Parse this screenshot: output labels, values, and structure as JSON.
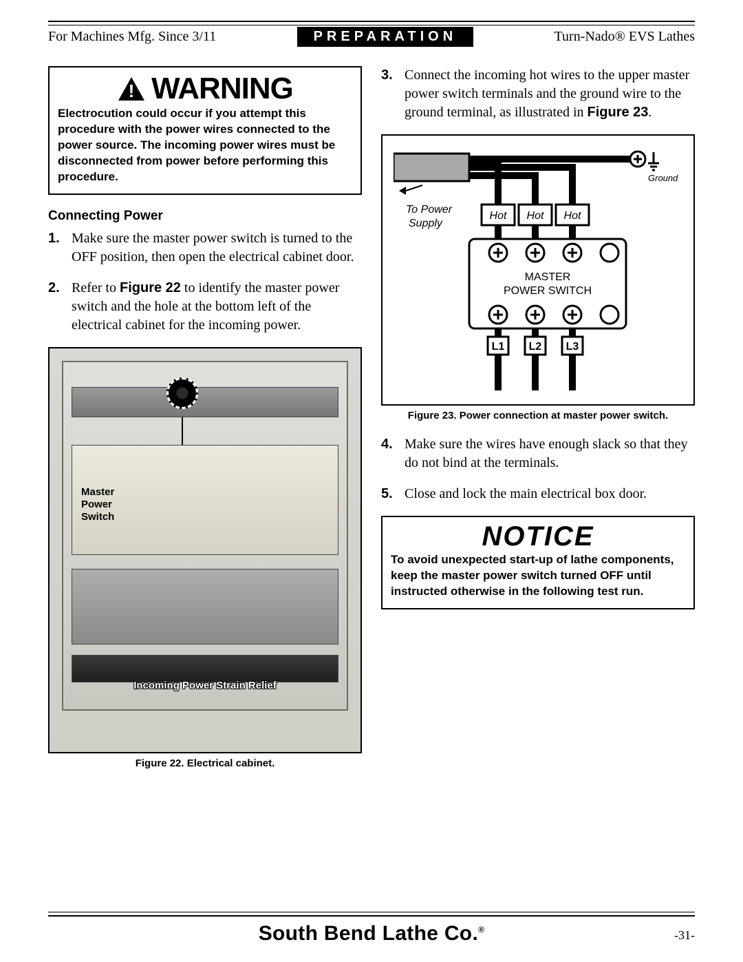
{
  "header": {
    "left": "For Machines Mfg. Since 3/11",
    "center": "PREPARATION",
    "right": "Turn-Nado® EVS Lathes"
  },
  "warning": {
    "title": "WARNING",
    "body": "Electrocution could occur if you attempt this procedure with the power wires connected to the power source. The incoming power wires must be disconnected from power before performing this procedure."
  },
  "subhead": "Connecting Power",
  "steps": [
    {
      "num": "1.",
      "html": "Make sure the master power switch is turned to the OFF position, then open the electrical cabinet door."
    },
    {
      "num": "2.",
      "html": "Refer to <strong>Figure 22</strong> to identify the master power switch and the hole at the bottom left of the electrical cabinet for the incoming power."
    }
  ],
  "fig22": {
    "caption": "Figure 22. Electrical cabinet.",
    "callout_mps_l1": "Master",
    "callout_mps_l2": "Power",
    "callout_mps_l3": "Switch",
    "bottom_label": "Incoming Power Strain Relief"
  },
  "rightSteps": [
    {
      "num": "3.",
      "html": "Connect the incoming hot wires to the upper master power switch terminals and the ground wire to the ground terminal, as illustrated in <strong>Figure 23</strong>."
    }
  ],
  "fig23": {
    "caption": "Figure 23. Power connection at master power switch.",
    "labels": {
      "ground": "Ground",
      "toPower1": "To Power",
      "toPower2": "Supply",
      "hot": "Hot",
      "master1": "MASTER",
      "master2": "POWER SWITCH",
      "L1": "L1",
      "L2": "L2",
      "L3": "L3"
    },
    "colors": {
      "bg": "#ffffff",
      "stroke": "#000000",
      "cable_gray": "#a9a9a9",
      "hot_fill": "#ffffff"
    }
  },
  "rightStepsAfter": [
    {
      "num": "4.",
      "html": "Make sure the wires have enough slack so that they do not bind at the terminals."
    },
    {
      "num": "5.",
      "html": "Close and lock the main electrical box door."
    }
  ],
  "notice": {
    "title": "NOTICE",
    "body": "To avoid unexpected start-up of lathe components, keep the master power switch turned OFF until instructed otherwise in the following test run."
  },
  "footer": {
    "brand_pre": "South Bend Lathe Co",
    "brand_dot": ".",
    "page": "-31-"
  }
}
